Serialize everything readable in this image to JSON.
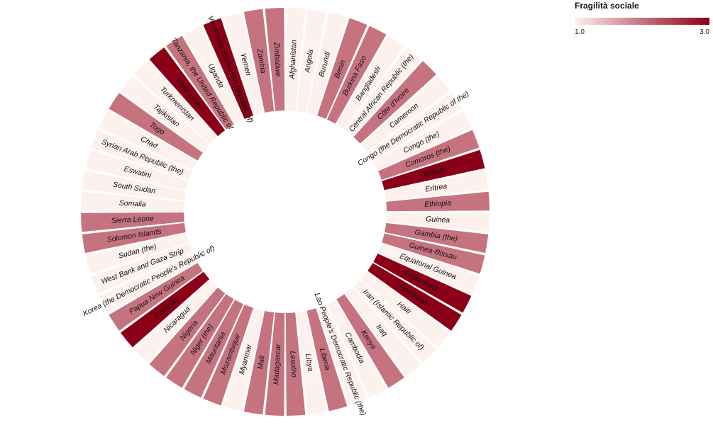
{
  "chart_data": {
    "type": "radial-bar",
    "title": "",
    "legend": {
      "title": "Fragilità sociale",
      "min_label": "1.0",
      "max_label": "3.0",
      "range": [
        1.0,
        3.0
      ],
      "colors": [
        "#fdf1ee",
        "#c5737f",
        "#8b0016"
      ],
      "placement": "top-right"
    },
    "categories": [
      "Afghanistan",
      "Angola",
      "Burundi",
      "Benin",
      "Burkina Faso",
      "Bangladesh",
      "Central African Republic (the)",
      "Côte d'Ivoire",
      "Cameroon",
      "Congo (the Democratic Republic of the)",
      "Congo (the)",
      "Comoros (the)",
      "Djibouti",
      "Eritrea",
      "Ethiopia",
      "Guinea",
      "Gambia (the)",
      "Guinea-Bissau",
      "Equatorial Guinea",
      "Guatemala",
      "Honduras",
      "Haiti",
      "Iran (Islamic Republic of)",
      "Iraq",
      "Kenya",
      "Cambodia",
      "Lao People's Democratic Republic (the)",
      "Liberia",
      "Libya",
      "Lesotho",
      "Madagascar",
      "Mali",
      "Myanmar",
      "Mozambique",
      "Mauritania",
      "Niger (the)",
      "Nigeria",
      "Nicaragua",
      "Pakistan",
      "Papua New Guinea",
      "Korea (the Democratic People's Republic of)",
      "West Bank and Gaza Strip",
      "Sudan (the)",
      "Solomon Islands",
      "Sierra Leone",
      "Somalia",
      "South Sudan",
      "Eswatini",
      "Syrian Arab Republic (the)",
      "Chad",
      "Togo",
      "Tajikistan",
      "Turkmenistan",
      "Timor-Leste",
      "Tanzania, the United Republic of",
      "Uganda",
      "Venezuela (Bolivarian Republic of)",
      "Yemen",
      "Zambia",
      "Zimbabwe"
    ],
    "values": [
      1,
      1,
      1,
      2,
      2,
      1,
      1,
      2,
      1,
      1,
      1,
      2,
      3,
      1,
      2,
      1,
      2,
      2,
      1,
      3,
      3,
      1,
      1,
      1,
      2,
      1,
      1,
      2,
      1,
      2,
      2,
      2,
      1,
      2,
      2,
      2,
      2,
      1,
      3,
      2,
      1,
      1,
      1,
      2,
      2,
      1,
      1,
      1,
      1,
      1,
      2,
      1,
      1,
      3,
      2,
      1,
      3,
      1,
      2,
      2
    ]
  }
}
